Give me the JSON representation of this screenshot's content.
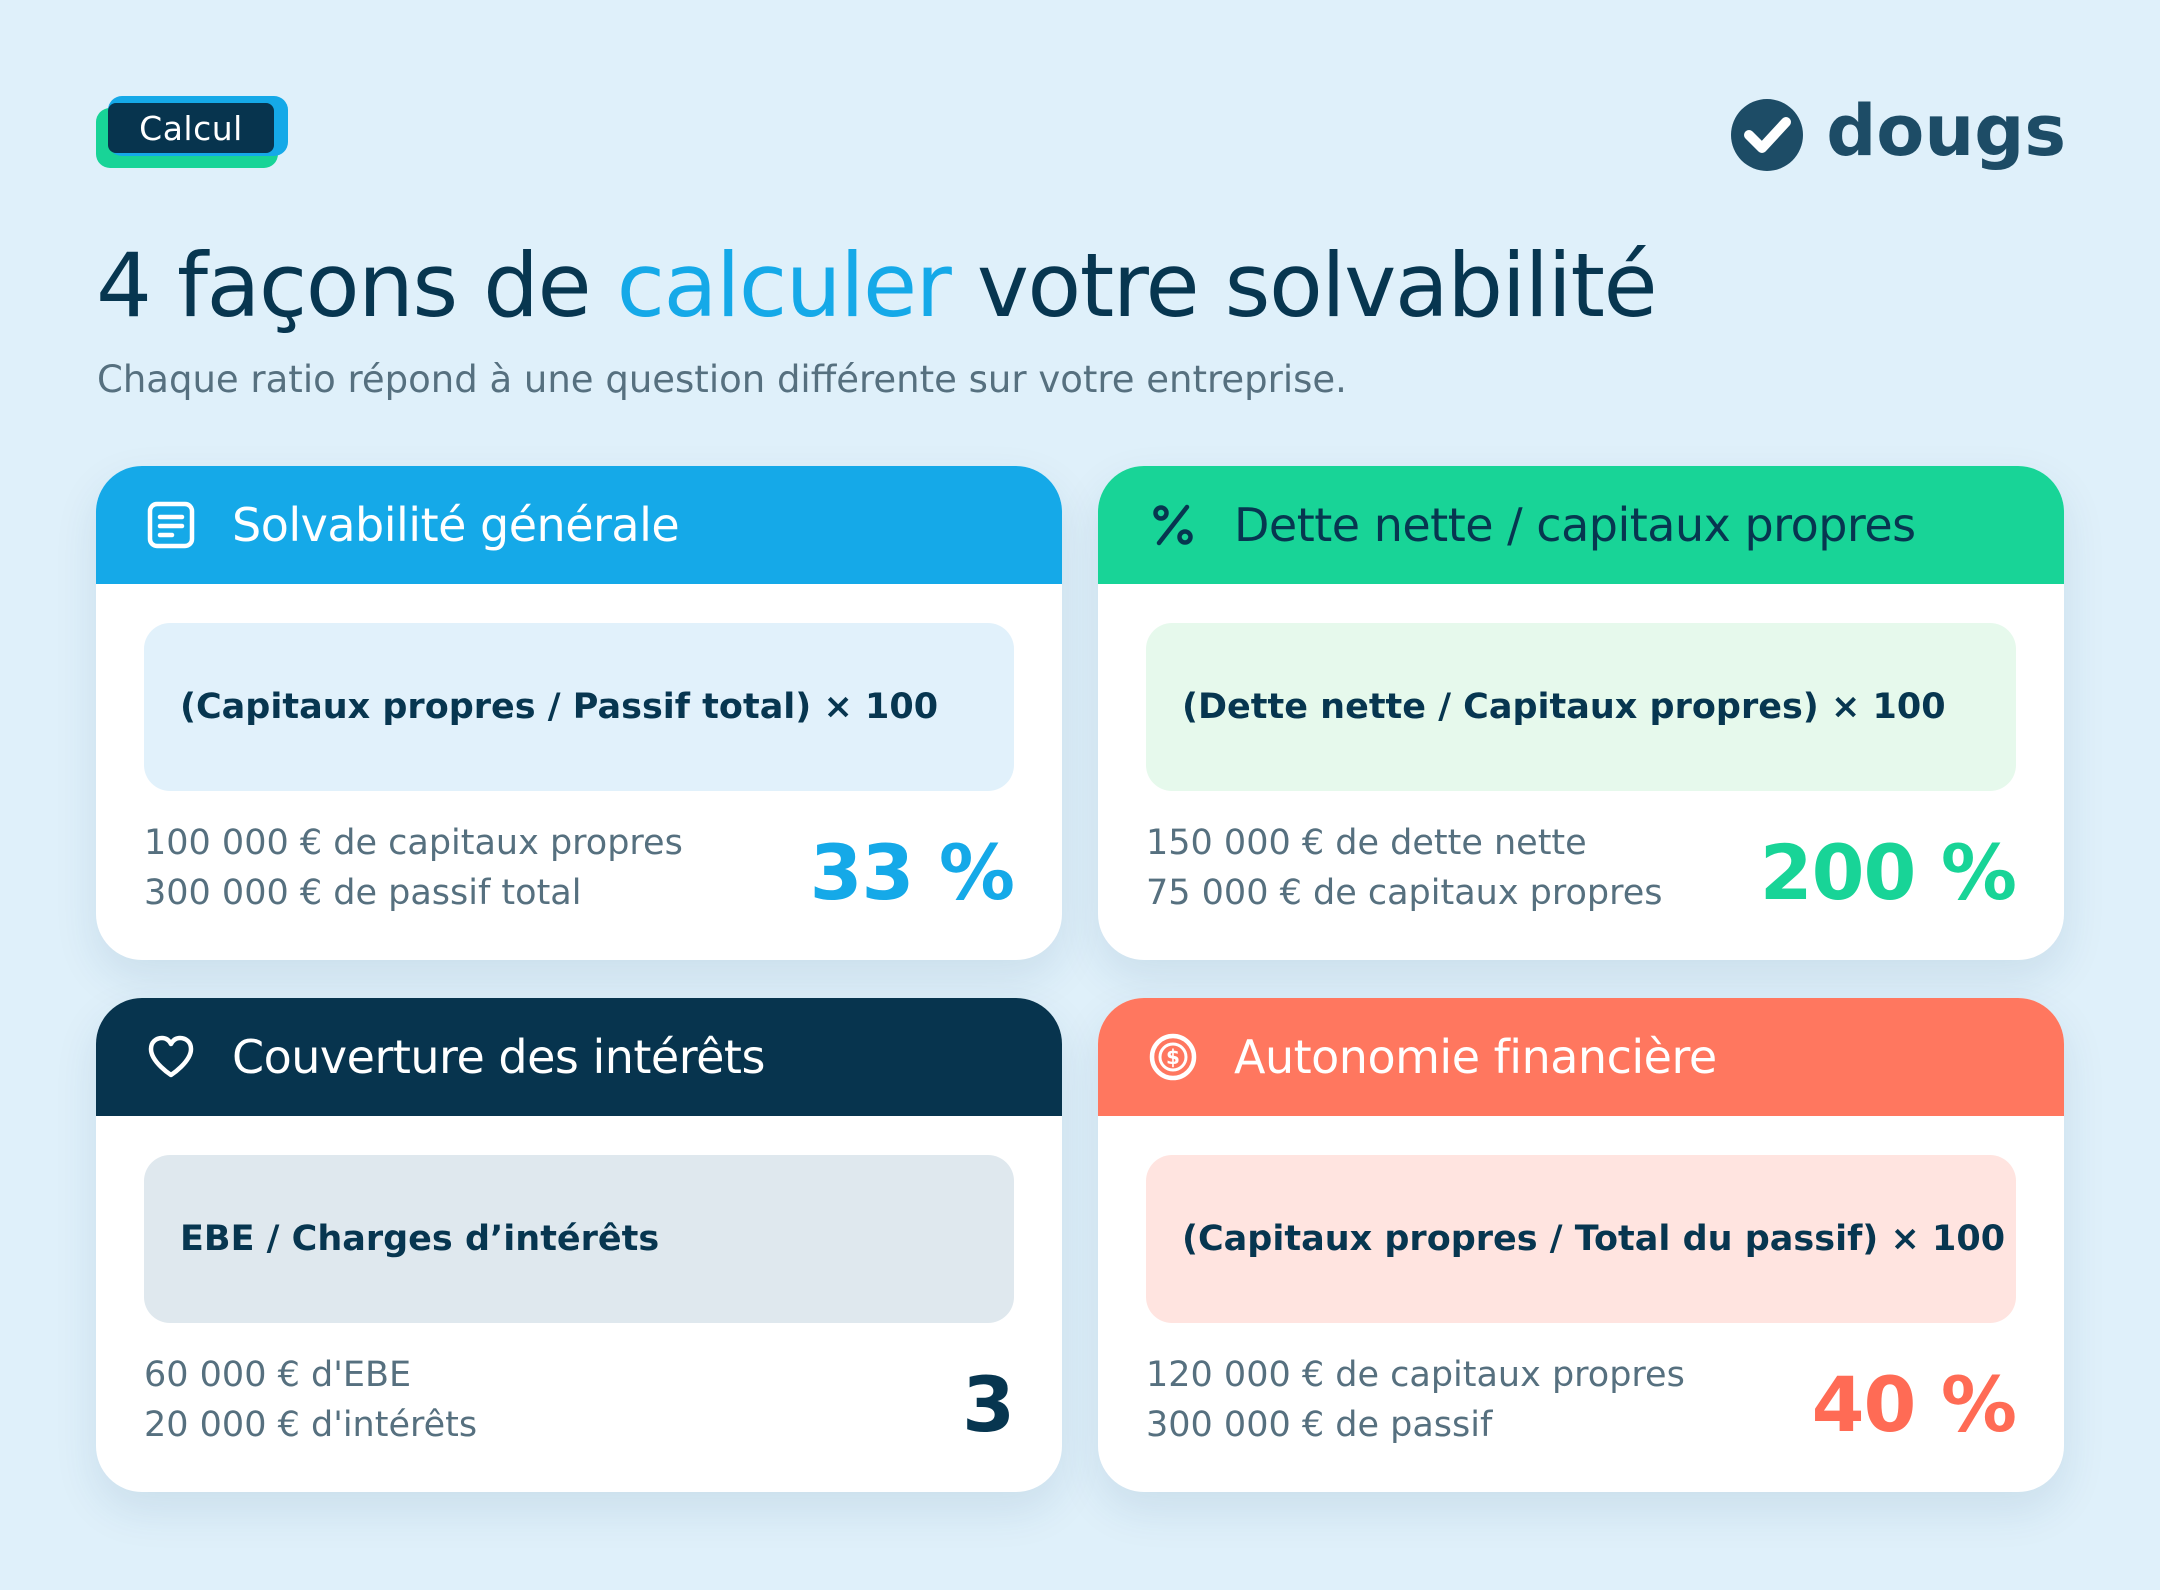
{
  "tag": {
    "label": "Calcul"
  },
  "logo": {
    "text": "dougs",
    "icon": "check-circle-icon",
    "color": "#1d4c66"
  },
  "title": {
    "part1": "4 façons de ",
    "accent": "calculer",
    "part2": " votre solvabilité"
  },
  "subtitle": "Chaque ratio répond à une question différente sur votre entreprise.",
  "colors": {
    "background": "#dff0fa",
    "blue": "#15a9e8",
    "green": "#18d497",
    "navy": "#07344e",
    "coral": "#ff775f"
  },
  "cards": [
    {
      "title": "Solvabilité générale",
      "icon": "document-icon",
      "formula": "(Capitaux propres / Passif total) × 100",
      "detail_line1": "100 000 € de capitaux propres",
      "detail_line2": "300 000 € de passif total",
      "result": "33 %"
    },
    {
      "title": "Dette nette / capitaux propres",
      "icon": "percent-icon",
      "formula": "(Dette nette / Capitaux propres) × 100",
      "detail_line1": "150 000 € de dette nette",
      "detail_line2": "75 000 € de capitaux propres",
      "result": "200 %"
    },
    {
      "title": "Couverture des intérêts",
      "icon": "heart-icon",
      "formula": "EBE / Charges d’intérêts",
      "detail_line1": "60 000 € d'EBE",
      "detail_line2": "20 000 € d'intérêts",
      "result": "3"
    },
    {
      "title": "Autonomie financière",
      "icon": "dollar-coin-icon",
      "formula": "(Capitaux propres / Total du passif) × 100",
      "detail_line1": "120 000 € de capitaux propres",
      "detail_line2": "300 000 € de passif",
      "result": "40 %"
    }
  ]
}
